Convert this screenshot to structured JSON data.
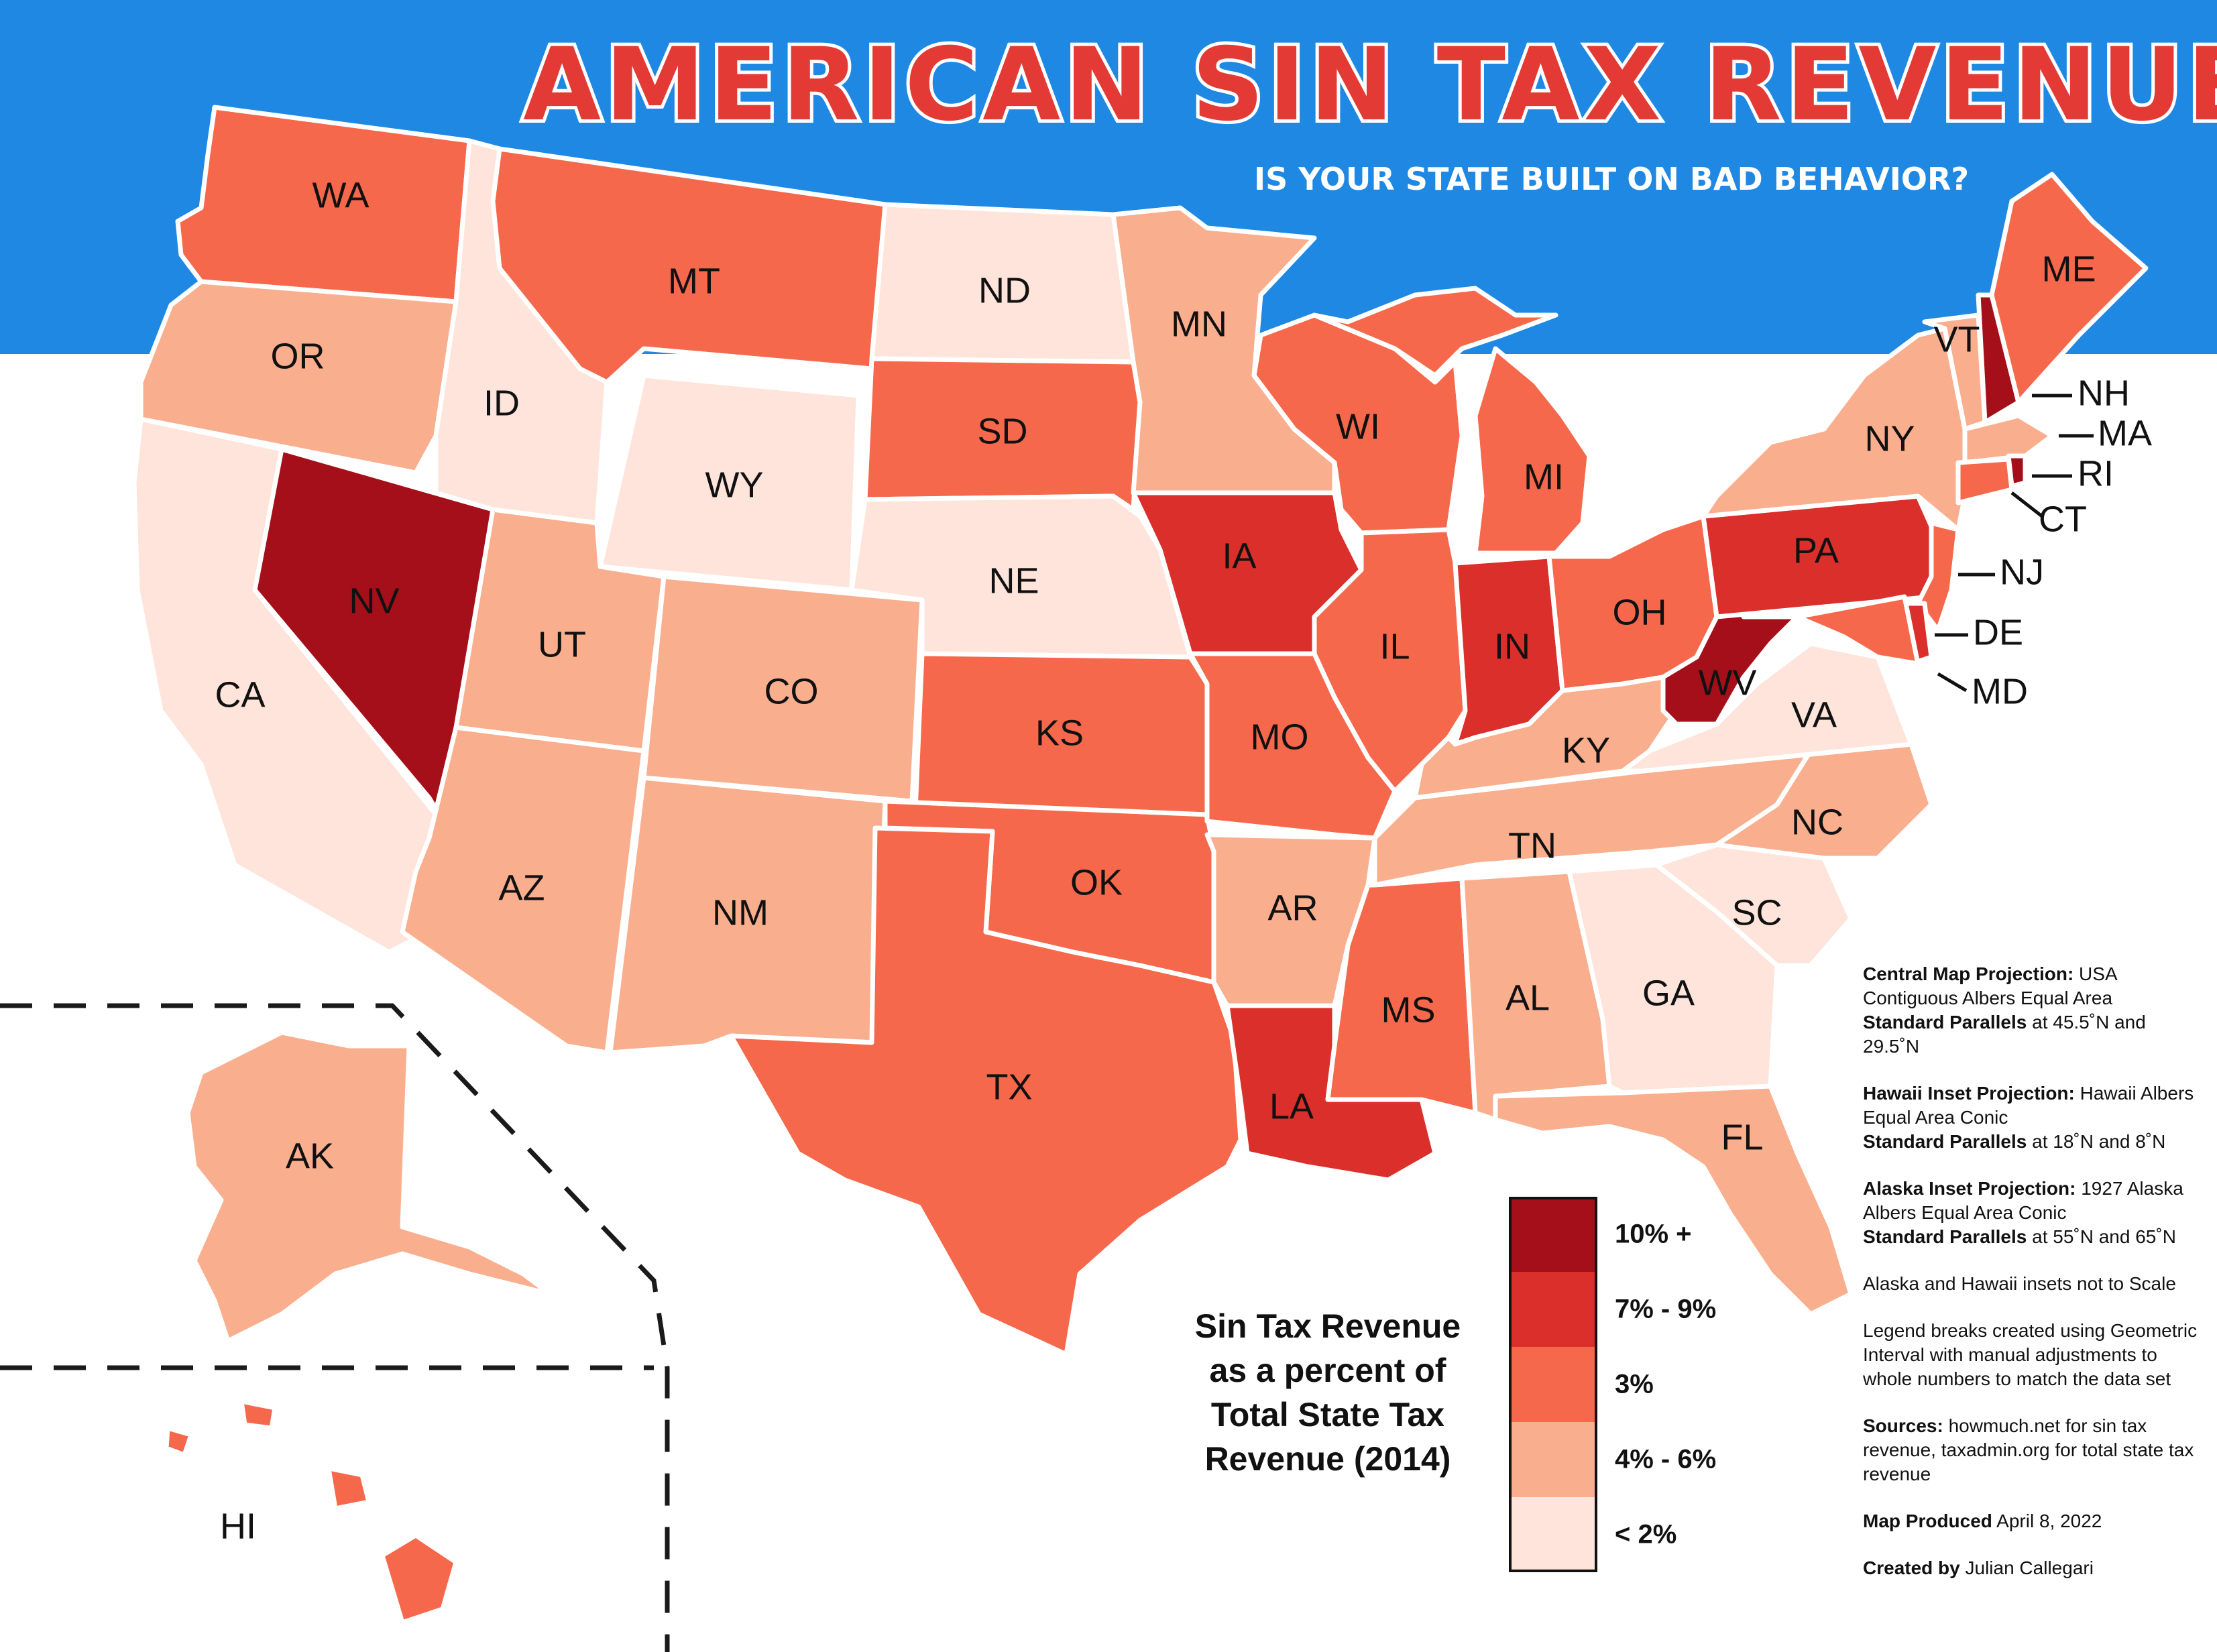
{
  "title": "AMERICAN SIN TAX REVENUE",
  "subtitle": "IS YOUR STATE BUILT ON BAD BEHAVIOR?",
  "colors": {
    "banner": "#1f88e3",
    "title": "#e33a36",
    "class_10_plus": "#a40f19",
    "class_7_9": "#db2f2b",
    "class_3": "#f6684b",
    "class_4_6": "#f9ae8e",
    "class_lt2": "#fee4da"
  },
  "map_data": {
    "type": "choropleth",
    "measure": "Sin tax revenue as a percent of total state tax revenue (2014)",
    "states": [
      {
        "abbr": "WA",
        "class": "3%"
      },
      {
        "abbr": "OR",
        "class": "4% - 6%"
      },
      {
        "abbr": "CA",
        "class": "< 2%"
      },
      {
        "abbr": "ID",
        "class": "< 2%"
      },
      {
        "abbr": "NV",
        "class": "10% +"
      },
      {
        "abbr": "MT",
        "class": "3%"
      },
      {
        "abbr": "WY",
        "class": "< 2%"
      },
      {
        "abbr": "UT",
        "class": "4% - 6%"
      },
      {
        "abbr": "AZ",
        "class": "4% - 6%"
      },
      {
        "abbr": "CO",
        "class": "4% - 6%"
      },
      {
        "abbr": "NM",
        "class": "4% - 6%"
      },
      {
        "abbr": "ND",
        "class": "< 2%"
      },
      {
        "abbr": "SD",
        "class": "3%"
      },
      {
        "abbr": "NE",
        "class": "< 2%"
      },
      {
        "abbr": "KS",
        "class": "3%"
      },
      {
        "abbr": "OK",
        "class": "3%"
      },
      {
        "abbr": "TX",
        "class": "3%"
      },
      {
        "abbr": "MN",
        "class": "4% - 6%"
      },
      {
        "abbr": "IA",
        "class": "7% - 9%"
      },
      {
        "abbr": "MO",
        "class": "3%"
      },
      {
        "abbr": "AR",
        "class": "4% - 6%"
      },
      {
        "abbr": "LA",
        "class": "7% - 9%"
      },
      {
        "abbr": "WI",
        "class": "3%"
      },
      {
        "abbr": "IL",
        "class": "3%"
      },
      {
        "abbr": "MI",
        "class": "3%"
      },
      {
        "abbr": "IN",
        "class": "7% - 9%"
      },
      {
        "abbr": "OH",
        "class": "3%"
      },
      {
        "abbr": "KY",
        "class": "4% - 6%"
      },
      {
        "abbr": "TN",
        "class": "4% - 6%"
      },
      {
        "abbr": "MS",
        "class": "3%"
      },
      {
        "abbr": "AL",
        "class": "4% - 6%"
      },
      {
        "abbr": "GA",
        "class": "< 2%"
      },
      {
        "abbr": "FL",
        "class": "4% - 6%"
      },
      {
        "abbr": "SC",
        "class": "< 2%"
      },
      {
        "abbr": "NC",
        "class": "4% - 6%"
      },
      {
        "abbr": "VA",
        "class": "< 2%"
      },
      {
        "abbr": "WV",
        "class": "10% +"
      },
      {
        "abbr": "PA",
        "class": "7% - 9%"
      },
      {
        "abbr": "NY",
        "class": "4% - 6%"
      },
      {
        "abbr": "VT",
        "class": "4% - 6%"
      },
      {
        "abbr": "NH",
        "class": "10% +"
      },
      {
        "abbr": "ME",
        "class": "3%"
      },
      {
        "abbr": "MA",
        "class": "4% - 6%"
      },
      {
        "abbr": "RI",
        "class": "10% +"
      },
      {
        "abbr": "CT",
        "class": "3%"
      },
      {
        "abbr": "NJ",
        "class": "3%"
      },
      {
        "abbr": "DE",
        "class": "7% - 9%"
      },
      {
        "abbr": "MD",
        "class": "3%"
      },
      {
        "abbr": "AK",
        "class": "4% - 6%"
      },
      {
        "abbr": "HI",
        "class": "3%"
      }
    ]
  },
  "legend": {
    "title_lines": [
      "Sin Tax Revenue",
      "as a percent of",
      "Total State Tax",
      "Revenue (2014)"
    ],
    "items": [
      {
        "label": "10% +",
        "color": "#a40f19"
      },
      {
        "label": "7% - 9%",
        "color": "#db2f2b"
      },
      {
        "label": "3%",
        "color": "#f6684b"
      },
      {
        "label": "4% - 6%",
        "color": "#f9ae8e"
      },
      {
        "label": "< 2%",
        "color": "#fee4da"
      }
    ]
  },
  "notes": [
    {
      "bold": "Central Map Projection:",
      "text": " USA Contiguous Albers Equal Area",
      "bold2": "Standard Parallels",
      "text2": " at 45.5˚N and 29.5˚N"
    },
    {
      "bold": "Hawaii Inset Projection:",
      "text": " Hawaii Albers Equal Area Conic",
      "bold2": "Standard Parallels",
      "text2": " at 18˚N and 8˚N"
    },
    {
      "bold": "Alaska Inset Projection:",
      "text": " 1927 Alaska Albers Equal Area Conic",
      "bold2": "Standard Parallels",
      "text2": " at 55˚N and 65˚N"
    },
    {
      "bold": "",
      "text": "Alaska and Hawaii insets not to Scale",
      "bold2": "",
      "text2": ""
    },
    {
      "bold": "",
      "text": "Legend breaks created using Geometric Interval with manual adjustments to whole numbers to match the data set",
      "bold2": "",
      "text2": ""
    },
    {
      "bold": "Sources:",
      "text": " howmuch.net for sin tax revenue, taxadmin.org for total state tax revenue",
      "bold2": "",
      "text2": ""
    },
    {
      "bold": "Map Produced",
      "text": " April 8, 2022",
      "bold2": "",
      "text2": ""
    },
    {
      "bold": "Created by",
      "text": " Julian Callegari",
      "bold2": "",
      "text2": ""
    }
  ]
}
